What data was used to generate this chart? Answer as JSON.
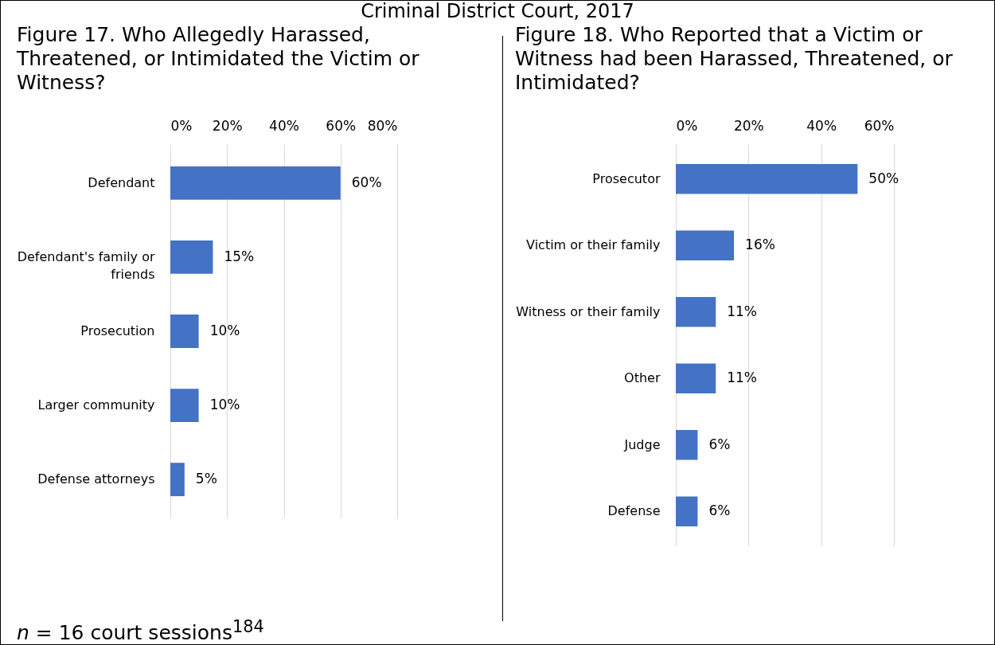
{
  "chart_data": [
    {
      "type": "bar",
      "orientation": "horizontal",
      "title": "Criminal District Court, 2017",
      "subtitle": "Figure 17. Who Allegedly Harassed, Threatened, or Intimidated the Victim or Witness?",
      "categories": [
        "Defendant",
        "Defendant's family or friends",
        "Prosecution",
        "Larger community",
        "Defense attorneys"
      ],
      "values": [
        60,
        15,
        10,
        10,
        5
      ],
      "value_labels": [
        "60%",
        "15%",
        "10%",
        "10%",
        "5%"
      ],
      "color": "#4472c4",
      "xlim": [
        0,
        80
      ],
      "xticks": [
        {
          "value": 0,
          "label": "0%"
        },
        {
          "value": 20,
          "label": "20%"
        },
        {
          "value": 40,
          "label": "40%"
        },
        {
          "value": 60,
          "label": "60%"
        },
        {
          "value": 80,
          "label": "80%"
        }
      ],
      "grid": "x",
      "annotations": [
        "n = 16 court sessions$^{184}$"
      ]
    },
    {
      "type": "bar",
      "orientation": "horizontal",
      "title": "Figure 18. Who Reported that a Victim or Witness had been Harassed, Threatened, or Intimidated?",
      "categories": [
        "Prosecutor",
        "Victim or their family",
        "Witness or their family",
        "Other",
        "Judge",
        "Defense"
      ],
      "values": [
        50,
        16,
        11,
        11,
        6,
        6
      ],
      "value_labels": [
        "50%",
        "16%",
        "11%",
        "11%",
        "6%",
        "6%"
      ],
      "color": "#4472c4",
      "xlim": [
        0,
        60
      ],
      "xticks": [
        {
          "value": 0,
          "label": "0%"
        },
        {
          "value": 20,
          "label": "20%"
        },
        {
          "value": 40,
          "label": "40%"
        },
        {
          "value": 60,
          "label": "60%"
        }
      ],
      "grid": "x"
    }
  ]
}
